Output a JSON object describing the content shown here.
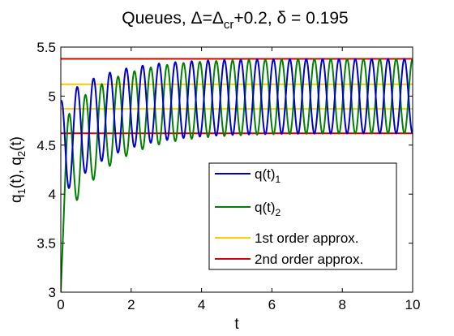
{
  "chart_data": {
    "type": "line",
    "title": {
      "prefix": "Queues, ",
      "delta": "Δ",
      "eq": "=",
      "delta_cr": "Δ",
      "cr_sub": "cr",
      "plus": "+0.2, ",
      "small_delta": "δ",
      "tail": " = 0.195"
    },
    "xlabel": "t",
    "ylabel": {
      "q": "q",
      "sub1": "1",
      "mid": "(t), q",
      "sub2": "2",
      "end": "(t)"
    },
    "xlim": [
      0,
      10
    ],
    "ylim": [
      3,
      5.5
    ],
    "xticks": [
      "0",
      "2",
      "4",
      "6",
      "8",
      "10"
    ],
    "xtick_values": [
      0,
      2,
      4,
      6,
      8,
      10
    ],
    "yticks": [
      "3",
      "3.5",
      "4",
      "4.5",
      "5",
      "5.5"
    ],
    "ytick_values": [
      3,
      3.5,
      4,
      4.5,
      5,
      5.5
    ],
    "grid": false,
    "legend_position": "lower-right",
    "series": [
      {
        "name": "q(t)",
        "legend_sub": "1",
        "color": "#0000cc",
        "kind": "oscillation",
        "start": 4.95,
        "center_start": 4.45,
        "center_end": 5.0,
        "amp_start": 0.52,
        "amp_end": 0.38,
        "settle_tau": 1.3,
        "period": 0.465,
        "phase": 1.5708
      },
      {
        "name": "q(t)",
        "legend_sub": "2",
        "color": "#008000",
        "kind": "oscillation",
        "start": 3.0,
        "center_start": 4.2,
        "center_end": 5.0,
        "amp_start": 0.55,
        "amp_end": 0.38,
        "settle_tau": 1.3,
        "period": 0.465,
        "phase": -1.5708
      },
      {
        "name": "1st order approx.",
        "color": "#ffcc00",
        "kind": "constant",
        "levels": [
          5.12,
          4.87
        ]
      },
      {
        "name": "2nd order approx.",
        "color": "#dd0000",
        "kind": "constant",
        "levels": [
          5.38,
          4.62
        ]
      }
    ]
  }
}
